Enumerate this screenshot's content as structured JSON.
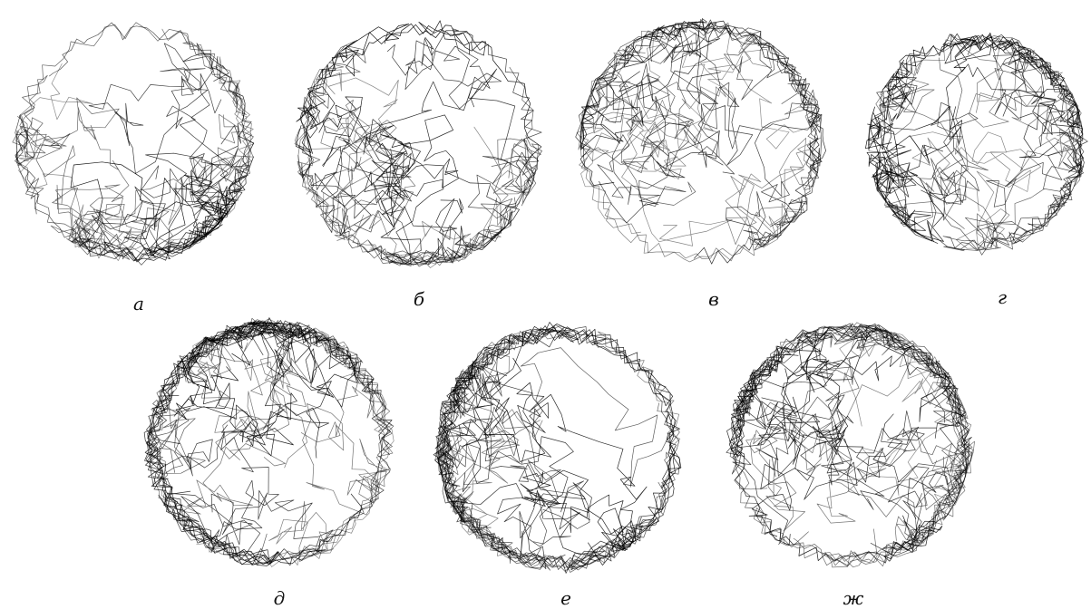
{
  "figure": {
    "background": "#ffffff",
    "stroke_color": "#000000",
    "panels": [
      {
        "label": "а",
        "density": 0.45,
        "edge_bias": "bottom"
      },
      {
        "label": "б",
        "density": 0.5,
        "edge_bias": "bottom"
      },
      {
        "label": "в",
        "density": 0.55,
        "edge_bias": "top-left"
      },
      {
        "label": "г",
        "density": 0.6,
        "edge_bias": "uniform"
      },
      {
        "label": "д",
        "density": 0.9,
        "edge_bias": "top"
      },
      {
        "label": "е",
        "density": 0.9,
        "edge_bias": "left"
      },
      {
        "label": "ж",
        "density": 0.85,
        "edge_bias": "uniform"
      }
    ]
  }
}
